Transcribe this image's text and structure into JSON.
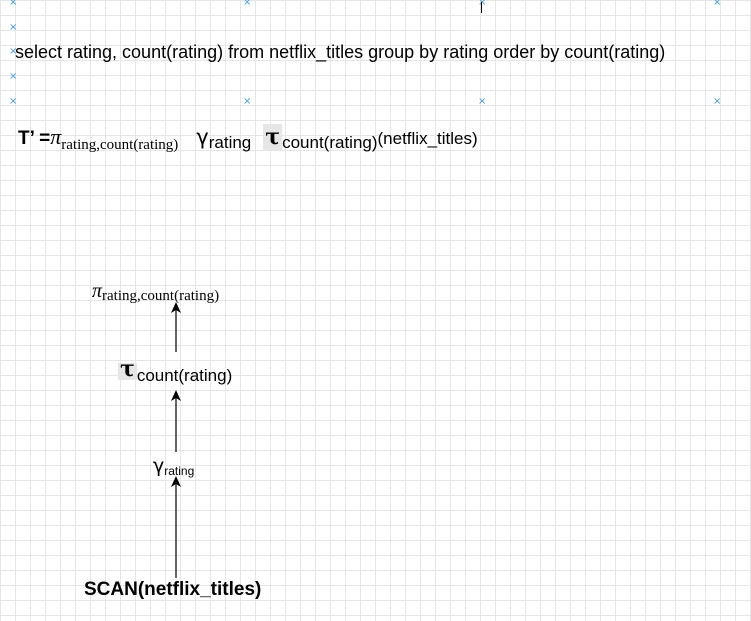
{
  "sql_query": "select rating, count(rating) from netflix_titles group by rating order by count(rating)",
  "expression": {
    "lhs": "T’ =",
    "pi_symbol": "π",
    "pi_sub": "rating,count(rating)",
    "gamma_symbol": "γ",
    "gamma_sub": "rating",
    "tau_symbol": "τ",
    "tau_sub": "count(rating)",
    "operand": "(netflix_titles)"
  },
  "tree": {
    "project": {
      "symbol": "π",
      "sub": "rating,count(rating)"
    },
    "sort": {
      "symbol": "τ",
      "sub": "count(rating)"
    },
    "group": {
      "symbol": "γ",
      "sub": "rating"
    },
    "scan": {
      "label": "SCAN(netflix_titles)"
    }
  },
  "colors": {
    "grid": "#e6e6e6",
    "marker": "#3b9bd6",
    "tau_highlight": "#e6e6e6"
  }
}
